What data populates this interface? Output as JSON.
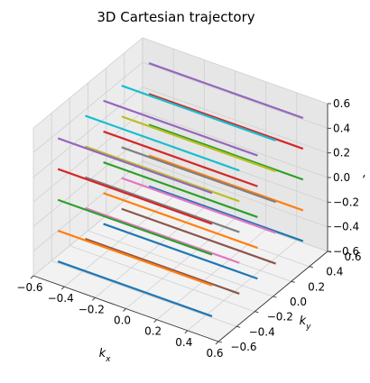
{
  "chart_data": {
    "type": "line",
    "title": "3D Cartesian trajectory",
    "xlabel": "k_x",
    "ylabel": "k_y",
    "zlabel": ",",
    "xlim": [
      -0.6,
      0.6
    ],
    "ylim": [
      -0.6,
      0.6
    ],
    "zlim": [
      -0.6,
      0.6
    ],
    "x_ticks": [
      "−0.6",
      "−0.4",
      "−0.2",
      "0.0",
      "0.2",
      "0.4",
      "0.6"
    ],
    "y_ticks": [
      "−0.6",
      "−0.4",
      "−0.2",
      "0.0",
      "0.2",
      "0.4",
      "0.6"
    ],
    "z_ticks": [
      "−0.6",
      "−0.4",
      "−0.2",
      "0.0",
      "0.2",
      "0.4",
      "0.6"
    ],
    "grid": true,
    "series_x": [
      -0.5,
      0.5
    ],
    "series_y": [
      -0.5,
      -0.5,
      -0.5,
      -0.5,
      -0.5,
      -0.2,
      -0.2,
      -0.2,
      -0.2,
      -0.2,
      0.0,
      0.0,
      0.0,
      0.0,
      0.0,
      0.2,
      0.2,
      0.2,
      0.2,
      0.2,
      0.5,
      0.5,
      0.5,
      0.5,
      0.5
    ],
    "series_z": [
      -0.5,
      -0.25,
      0.0,
      0.25,
      0.5,
      -0.5,
      -0.25,
      0.0,
      0.25,
      0.5,
      -0.5,
      -0.25,
      0.0,
      0.25,
      0.5,
      -0.5,
      -0.25,
      0.0,
      0.25,
      0.5,
      -0.5,
      -0.25,
      0.0,
      0.25,
      0.5
    ],
    "colors": [
      "#1f77b4",
      "#ff7f0e",
      "#2ca02c",
      "#d62728",
      "#9467bd",
      "#8c564b",
      "#e377c2",
      "#7f7f7f",
      "#bcbd22",
      "#17becf"
    ]
  }
}
